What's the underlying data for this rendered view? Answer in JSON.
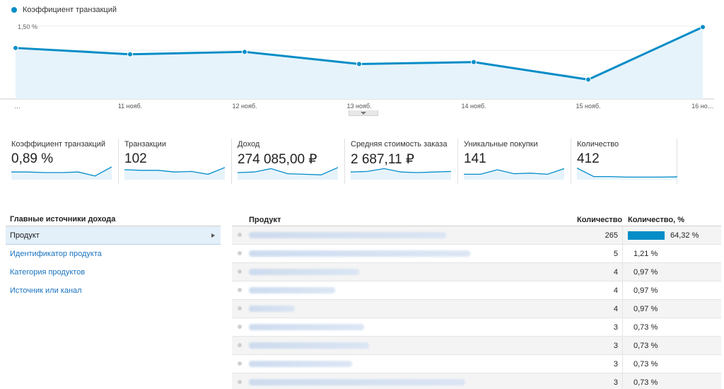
{
  "chart_data": {
    "type": "line",
    "legend_label": "Коэффициент транзакций",
    "color": "#058dc7",
    "fill": "#e6f3fb",
    "x_labels": [
      "…",
      "11 нояб.",
      "12 нояб.",
      "13 нояб.",
      "14 нояб.",
      "15 нояб.",
      "16 но…"
    ],
    "values": [
      1.05,
      0.92,
      0.97,
      0.72,
      0.76,
      0.4,
      1.48
    ],
    "y_ticks": [
      {
        "value": 1.5,
        "label": "1,50 %"
      },
      {
        "value": 1.0,
        "label": "1,00 %"
      },
      {
        "value": 0.5,
        "label": "0,50 %"
      }
    ],
    "ylim": [
      0,
      1.6
    ],
    "grid": true
  },
  "scorecards": [
    {
      "label": "Коэффициент транзакций",
      "value": "0,89 %",
      "spark": [
        0.55,
        0.55,
        0.5,
        0.5,
        0.55,
        0.2,
        1.0
      ]
    },
    {
      "label": "Транзакции",
      "value": "102",
      "spark": [
        0.75,
        0.7,
        0.7,
        0.55,
        0.6,
        0.35,
        0.95
      ]
    },
    {
      "label": "Доход",
      "value": "274 085,00 ₽",
      "spark": [
        0.5,
        0.55,
        0.85,
        0.4,
        0.35,
        0.3,
        0.95
      ]
    },
    {
      "label": "Средняя стоимость заказа",
      "value": "2 687,11 ₽",
      "spark": [
        0.55,
        0.6,
        0.85,
        0.55,
        0.5,
        0.55,
        0.6
      ]
    },
    {
      "label": "Уникальные покупки",
      "value": "141",
      "spark": [
        0.35,
        0.35,
        0.75,
        0.4,
        0.45,
        0.35,
        0.85
      ]
    },
    {
      "label": "Количество",
      "value": "412",
      "spark": [
        0.9,
        0.15,
        0.15,
        0.1,
        0.1,
        0.1,
        0.12
      ]
    }
  ],
  "dimensions": {
    "header": "Главные источники дохода",
    "items": [
      {
        "label": "Продукт",
        "active": true
      },
      {
        "label": "Идентификатор продукта",
        "active": false
      },
      {
        "label": "Категория продуктов",
        "active": false
      },
      {
        "label": "Источник или канал",
        "active": false
      }
    ]
  },
  "table": {
    "columns": {
      "product": "Продукт",
      "qty": "Количество",
      "share": "Количество, %"
    },
    "rows": [
      {
        "qty": "265",
        "pct": "64,32 %",
        "share": 0.6432,
        "blur_width": 0.82
      },
      {
        "qty": "5",
        "pct": "1,21 %",
        "share": 0.0121,
        "blur_width": 0.92
      },
      {
        "qty": "4",
        "pct": "0,97 %",
        "share": 0.0097,
        "blur_width": 0.46
      },
      {
        "qty": "4",
        "pct": "0,97 %",
        "share": 0.0097,
        "blur_width": 0.36
      },
      {
        "qty": "4",
        "pct": "0,97 %",
        "share": 0.0097,
        "blur_width": 0.19
      },
      {
        "qty": "3",
        "pct": "0,73 %",
        "share": 0.0073,
        "blur_width": 0.48
      },
      {
        "qty": "3",
        "pct": "0,73 %",
        "share": 0.0073,
        "blur_width": 0.5
      },
      {
        "qty": "3",
        "pct": "0,73 %",
        "share": 0.0073,
        "blur_width": 0.43
      },
      {
        "qty": "3",
        "pct": "0,73 %",
        "share": 0.0073,
        "blur_width": 0.9
      }
    ]
  }
}
